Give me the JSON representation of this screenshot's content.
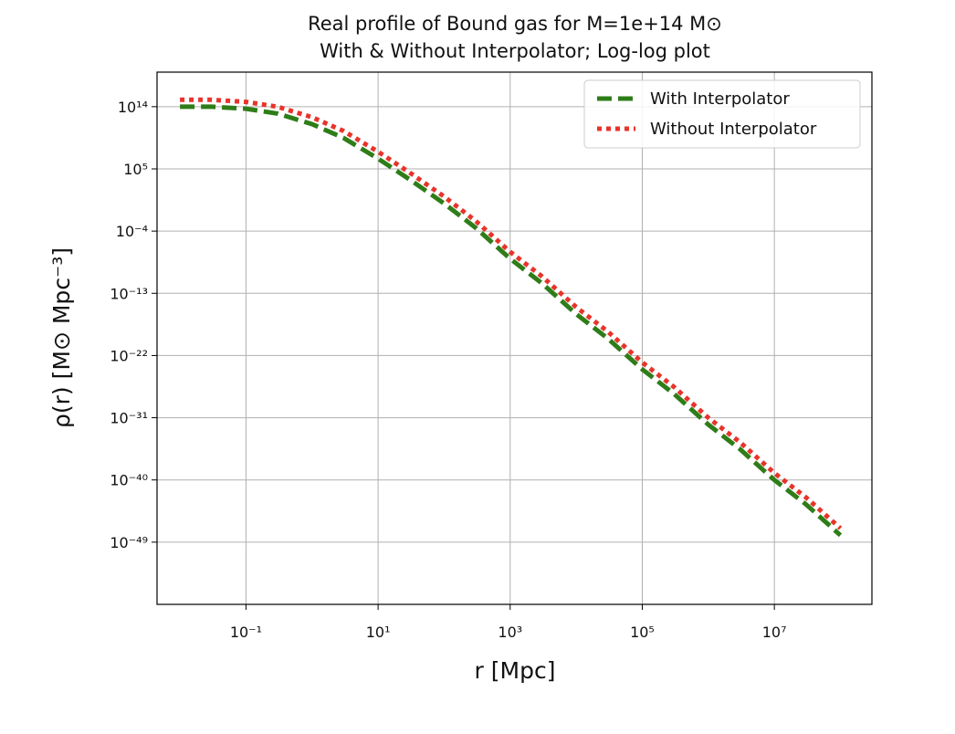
{
  "chart_data": {
    "type": "line",
    "title": "Real profile of Bound gas for M=1e+14 M⊙",
    "subtitle": "With & Without Interpolator; Log-log plot",
    "x_scale": "log",
    "y_scale": "log",
    "xlabel": "r [Mpc]",
    "ylabel": "ρ(r) [M⊙ Mpc⁻³]",
    "xlim": [
      0.0045,
      300000000
    ],
    "ylim": [
      1e-58,
      1e+19
    ],
    "x_ticks": [
      "10⁻¹",
      "10¹",
      "10³",
      "10⁵",
      "10⁷"
    ],
    "y_ticks": [
      "10¹⁴",
      "10⁵",
      "10⁻⁴",
      "10⁻¹³",
      "10⁻²²",
      "10⁻³¹",
      "10⁻⁴⁰",
      "10⁻⁴⁹"
    ],
    "grid": true,
    "legend_position": "top-right",
    "series": [
      {
        "name": "With Interpolator",
        "color": "#2e7d18",
        "line_style": "dashed",
        "x": [
          0.01,
          0.03,
          0.1,
          0.3,
          1,
          3,
          10,
          30,
          100,
          300,
          1000,
          3000,
          10000,
          30000,
          100000,
          300000,
          1000000,
          3000000,
          10000000,
          30000000,
          100000000
        ],
        "y": [
          100000000000000.0,
          100000000000000.0,
          50000000000000.0,
          10000000000000.0,
          300000000000.0,
          3000000000.0,
          3000000.0,
          3000.0,
          1.0,
          0.0003,
          1e-08,
          3e-12,
          1e-16,
          3e-20,
          1e-24,
          3e-28,
          1e-32,
          3e-36,
          1e-40,
          3e-44,
          1e-48
        ]
      },
      {
        "name": "Without Interpolator",
        "color": "#e8332a",
        "line_style": "dotted",
        "x": [
          0.01,
          0.03,
          0.1,
          0.3,
          1,
          3,
          10,
          30,
          100,
          300,
          1000,
          3000,
          10000,
          30000,
          100000,
          300000,
          1000000,
          3000000,
          10000000,
          30000000,
          100000000
        ],
        "y": [
          1000000000000000.0,
          1000000000000000.0,
          500000000000000.0,
          100000000000000.0,
          3000000000000.0,
          30000000000.0,
          30000000.0,
          30000.0,
          10.0,
          0.003,
          1e-07,
          3e-11,
          1e-15,
          3e-19,
          1e-23,
          3e-27,
          1e-31,
          3e-35,
          1e-39,
          3e-43,
          1e-47
        ]
      }
    ]
  }
}
